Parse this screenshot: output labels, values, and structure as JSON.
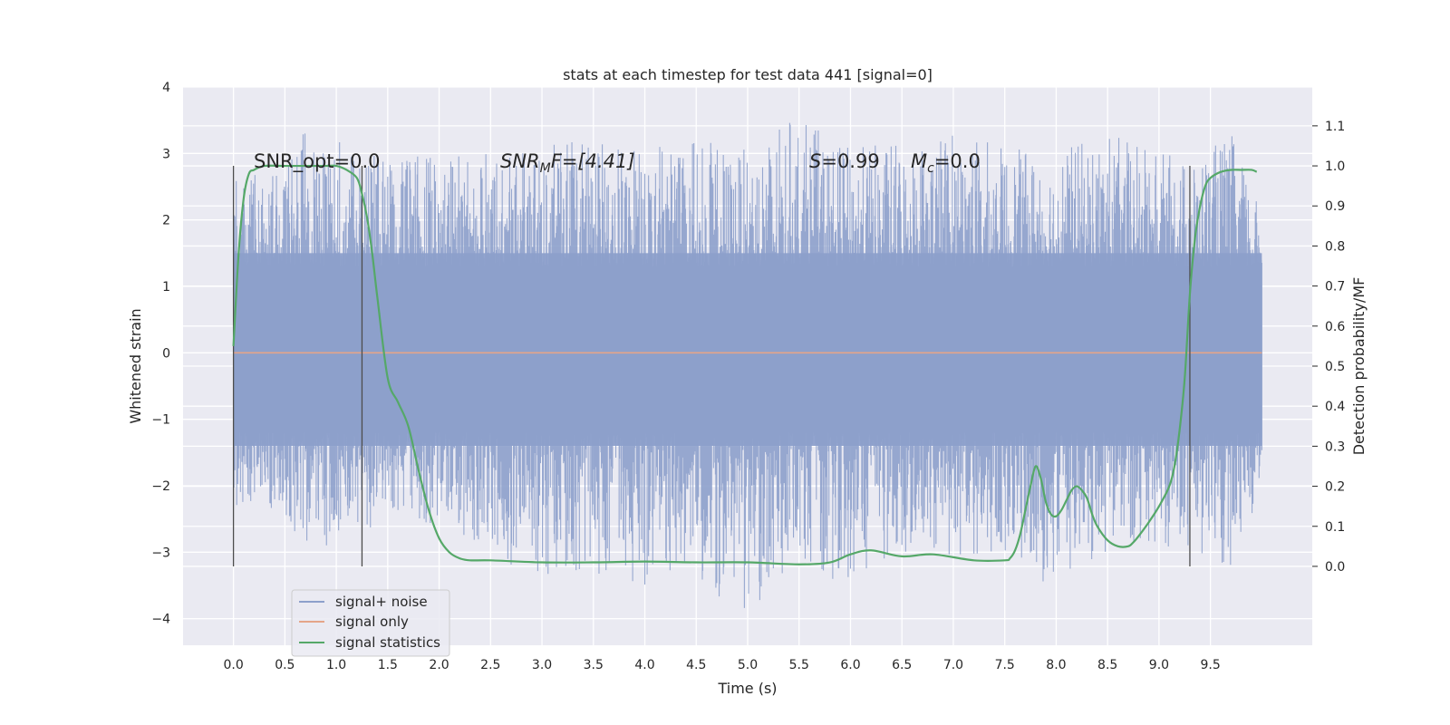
{
  "chart_data": {
    "type": "line",
    "title": "stats at each timestep for test data 441 [signal=0]",
    "xlabel": "Time (s)",
    "ylabel": "Whitened strain",
    "y2label": "Detection probability/MF",
    "xlim": [
      -0.49,
      10.49
    ],
    "ylim": [
      -4.4,
      4.0
    ],
    "y2lim": [
      -0.197,
      1.197
    ],
    "x_ticks": [
      "0.0",
      "0.5",
      "1.0",
      "1.5",
      "2.0",
      "2.5",
      "3.0",
      "3.5",
      "4.0",
      "4.5",
      "5.0",
      "5.5",
      "6.0",
      "6.5",
      "7.0",
      "7.5",
      "8.0",
      "8.5",
      "9.0",
      "9.5"
    ],
    "y_ticks": [
      "4",
      "3",
      "2",
      "1",
      "0",
      "−1",
      "−2",
      "−3",
      "−4"
    ],
    "y2_ticks": [
      "0.0",
      "0.1",
      "0.2",
      "0.3",
      "0.4",
      "0.5",
      "0.6",
      "0.7",
      "0.8",
      "0.9",
      "1.0",
      "1.1"
    ],
    "grid": true,
    "legend_position": "lower-left",
    "background": "#eaeaf2",
    "annotations": {
      "snr_opt": "SNR_opt=0.0",
      "snr_mf_main": "SNR",
      "snr_mf_sub": "M",
      "snr_mf_rest": "F=[4.41]",
      "s_var": "S",
      "s_rest": "=0.99",
      "mc_var": "M",
      "mc_sub": "c",
      "mc_rest": "=0.0"
    },
    "vertical_markers": [
      0.0,
      1.25,
      9.3
    ],
    "series": [
      {
        "name": "signal+ noise",
        "color": "#8da0cb",
        "kind": "noise",
        "x_range": [
          0.0,
          10.0
        ],
        "core_band": [
          -1.4,
          1.5
        ],
        "envelope": [
          [
            0.0,
            -2.3,
            2.6
          ],
          [
            0.5,
            -2.4,
            2.8
          ],
          [
            0.65,
            -2.9,
            3.4
          ],
          [
            1.0,
            -2.9,
            3.3
          ],
          [
            1.5,
            -2.5,
            2.9
          ],
          [
            2.0,
            -2.6,
            3.0
          ],
          [
            2.9,
            -3.4,
            3.1
          ],
          [
            3.4,
            -3.3,
            3.3
          ],
          [
            4.0,
            -3.5,
            3.1
          ],
          [
            4.5,
            -3.3,
            3.3
          ],
          [
            4.9,
            -4.1,
            3.0
          ],
          [
            5.5,
            -3.1,
            3.6
          ],
          [
            5.9,
            -3.5,
            3.1
          ],
          [
            6.5,
            -3.0,
            3.2
          ],
          [
            7.0,
            -3.1,
            3.4
          ],
          [
            7.5,
            -3.0,
            3.1
          ],
          [
            7.85,
            -3.5,
            3.0
          ],
          [
            8.5,
            -3.0,
            3.3
          ],
          [
            9.3,
            -2.9,
            2.9
          ],
          [
            9.7,
            -3.3,
            3.3
          ],
          [
            10.0,
            -2.0,
            2.1
          ]
        ]
      },
      {
        "name": "signal only",
        "color": "#e5a589",
        "x": [
          0.0,
          10.0
        ],
        "y": [
          0.0,
          0.0
        ]
      },
      {
        "name": "signal statistics",
        "color": "#55a868",
        "axis": "right",
        "x": [
          0.0,
          0.05,
          0.1,
          0.15,
          0.2,
          0.3,
          0.5,
          0.7,
          0.9,
          1.0,
          1.1,
          1.2,
          1.25,
          1.3,
          1.35,
          1.4,
          1.5,
          1.6,
          1.7,
          1.8,
          1.9,
          2.0,
          2.1,
          2.2,
          2.3,
          2.5,
          3.0,
          3.5,
          4.0,
          4.5,
          5.0,
          5.5,
          5.8,
          6.0,
          6.2,
          6.5,
          6.8,
          7.2,
          7.5,
          7.55,
          7.6,
          7.65,
          7.7,
          7.75,
          7.8,
          7.85,
          7.9,
          7.95,
          8.0,
          8.05,
          8.1,
          8.15,
          8.2,
          8.25,
          8.3,
          8.35,
          8.4,
          8.5,
          8.6,
          8.7,
          8.75,
          8.8,
          8.9,
          9.0,
          9.1,
          9.15,
          9.2,
          9.25,
          9.3,
          9.35,
          9.4,
          9.45,
          9.5,
          9.6,
          9.7,
          9.8,
          9.9,
          9.95
        ],
        "y": [
          0.55,
          0.78,
          0.92,
          0.98,
          0.99,
          1.0,
          1.0,
          1.0,
          1.0,
          1.0,
          0.99,
          0.97,
          0.93,
          0.87,
          0.78,
          0.67,
          0.47,
          0.41,
          0.35,
          0.24,
          0.14,
          0.07,
          0.035,
          0.02,
          0.015,
          0.015,
          0.01,
          0.01,
          0.012,
          0.01,
          0.01,
          0.005,
          0.01,
          0.03,
          0.04,
          0.025,
          0.03,
          0.015,
          0.015,
          0.02,
          0.04,
          0.08,
          0.14,
          0.2,
          0.25,
          0.22,
          0.16,
          0.13,
          0.125,
          0.14,
          0.165,
          0.19,
          0.2,
          0.19,
          0.17,
          0.13,
          0.1,
          0.065,
          0.05,
          0.05,
          0.06,
          0.075,
          0.11,
          0.15,
          0.2,
          0.25,
          0.34,
          0.47,
          0.68,
          0.82,
          0.9,
          0.95,
          0.97,
          0.985,
          0.99,
          0.99,
          0.99,
          0.985
        ]
      }
    ]
  }
}
